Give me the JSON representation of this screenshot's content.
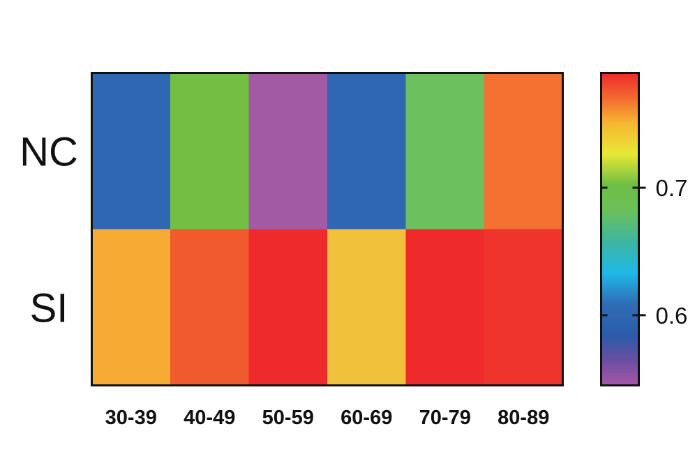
{
  "chart_data": {
    "type": "heatmap",
    "x_categories": [
      "30-39",
      "40-49",
      "50-59",
      "60-69",
      "70-79",
      "80-89"
    ],
    "y_categories": [
      "NC",
      "SI"
    ],
    "values": [
      [
        0.6,
        0.71,
        0.56,
        0.6,
        0.69,
        0.76
      ],
      [
        0.745,
        0.77,
        0.785,
        0.74,
        0.785,
        0.78
      ]
    ],
    "colorbar": {
      "range": [
        0.545,
        0.79
      ],
      "ticks": [
        {
          "value": 0.6,
          "label": "0.6"
        },
        {
          "value": 0.7,
          "label": "0.7"
        }
      ],
      "palette": [
        {
          "t": 0.0,
          "color": "#A855A8"
        },
        {
          "t": 0.08,
          "color": "#6A4EA2"
        },
        {
          "t": 0.16,
          "color": "#2B5BAA"
        },
        {
          "t": 0.26,
          "color": "#2F6DB5"
        },
        {
          "t": 0.36,
          "color": "#1FB8E8"
        },
        {
          "t": 0.46,
          "color": "#3DB6A0"
        },
        {
          "t": 0.56,
          "color": "#6CC05A"
        },
        {
          "t": 0.64,
          "color": "#6DBE44"
        },
        {
          "t": 0.74,
          "color": "#E7E835"
        },
        {
          "t": 0.84,
          "color": "#F6B531"
        },
        {
          "t": 0.92,
          "color": "#F26A30"
        },
        {
          "t": 1.0,
          "color": "#EE2A2A"
        }
      ]
    },
    "cell_colors": [
      [
        "#3067B3",
        "#72BF44",
        "#A35AA5",
        "#3067B3",
        "#6DC05E",
        "#F47131"
      ],
      [
        "#F7AB34",
        "#F15A2D",
        "#EE2A2A",
        "#F2C13B",
        "#EE2A2A",
        "#EE342C"
      ]
    ],
    "title": "",
    "xlabel": "",
    "ylabel": ""
  }
}
